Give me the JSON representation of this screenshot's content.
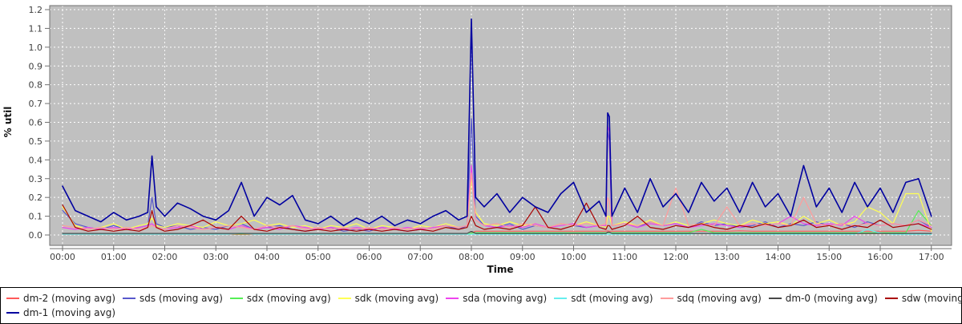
{
  "colors": {
    "page_bg": "#ffffff",
    "plot_bg": "#c0c0c0",
    "grid": "#ffffff",
    "frame": "#707070",
    "tick_text": "#404040",
    "legend_border": "#000000",
    "legend_text": "#222222"
  },
  "chart_data": {
    "type": "line",
    "title": "",
    "ylabel": "% util",
    "xlabel": "Time",
    "ylim": [
      0,
      1.2
    ],
    "grid": true,
    "legend_position": "bottom",
    "yticks": [
      "0.0",
      "0.1",
      "0.2",
      "0.3",
      "0.4",
      "0.5",
      "0.6",
      "0.7",
      "0.8",
      "0.9",
      "1.0",
      "1.1",
      "1.2"
    ],
    "xticks": [
      "00:00",
      "01:00",
      "02:00",
      "03:00",
      "04:00",
      "05:00",
      "06:00",
      "07:00",
      "08:00",
      "09:00",
      "10:00",
      "11:00",
      "12:00",
      "13:00",
      "14:00",
      "15:00",
      "16:00",
      "17:00"
    ],
    "x_minutes": [
      0,
      15,
      30,
      45,
      60,
      75,
      90,
      100,
      105,
      110,
      120,
      135,
      150,
      165,
      180,
      195,
      210,
      225,
      240,
      255,
      270,
      285,
      300,
      315,
      330,
      345,
      360,
      375,
      390,
      405,
      420,
      435,
      450,
      465,
      475,
      480,
      485,
      495,
      510,
      525,
      540,
      555,
      570,
      585,
      600,
      615,
      630,
      638,
      640,
      642,
      645,
      660,
      675,
      690,
      705,
      720,
      735,
      750,
      765,
      780,
      795,
      810,
      825,
      840,
      855,
      870,
      885,
      900,
      915,
      930,
      945,
      960,
      975,
      990,
      1005,
      1020
    ],
    "series": [
      {
        "name": "dm-2",
        "label": "dm-2 (moving avg)",
        "color": "#ff5a5a",
        "values": [
          0.003,
          0.003,
          0.003,
          0.003,
          0.003,
          0.003,
          0.003,
          0.003,
          0.003,
          0.003,
          0.003,
          0.003,
          0.003,
          0.003,
          0.003,
          0.003,
          0.003,
          0.003,
          0.003,
          0.003,
          0.003,
          0.003,
          0.003,
          0.003,
          0.003,
          0.003,
          0.003,
          0.003,
          0.003,
          0.003,
          0.003,
          0.003,
          0.003,
          0.003,
          0.003,
          0.01,
          0.02,
          0.02,
          0.02,
          0.02,
          0.02,
          0.02,
          0.02,
          0.02,
          0.02,
          0.02,
          0.02,
          0.02,
          0.022,
          0.02,
          0.02,
          0.02,
          0.02,
          0.02,
          0.02,
          0.02,
          0.02,
          0.02,
          0.02,
          0.02,
          0.022,
          0.02,
          0.02,
          0.02,
          0.02,
          0.02,
          0.02,
          0.02,
          0.02,
          0.02,
          0.02,
          0.02,
          0.02,
          0.02,
          0.025,
          0.02
        ]
      },
      {
        "name": "sds",
        "label": "sds (moving avg)",
        "color": "#5858cc",
        "values": [
          0.13,
          0.06,
          0.04,
          0.03,
          0.05,
          0.03,
          0.04,
          0.05,
          0.2,
          0.06,
          0.04,
          0.05,
          0.03,
          0.04,
          0.03,
          0.05,
          0.06,
          0.03,
          0.04,
          0.05,
          0.03,
          0.02,
          0.03,
          0.04,
          0.02,
          0.03,
          0.02,
          0.04,
          0.03,
          0.02,
          0.03,
          0.04,
          0.05,
          0.03,
          0.05,
          0.62,
          0.1,
          0.05,
          0.04,
          0.06,
          0.03,
          0.05,
          0.04,
          0.06,
          0.05,
          0.04,
          0.05,
          0.04,
          0.55,
          0.5,
          0.05,
          0.06,
          0.04,
          0.07,
          0.05,
          0.06,
          0.04,
          0.07,
          0.05,
          0.06,
          0.04,
          0.05,
          0.07,
          0.04,
          0.06,
          0.05,
          0.07,
          0.05,
          0.06,
          0.04,
          0.07,
          0.05,
          0.06,
          0.05,
          0.08,
          0.04
        ]
      },
      {
        "name": "sdx",
        "label": "sdx (moving avg)",
        "color": "#55ee55",
        "values": [
          0.005,
          0.005,
          0.005,
          0.005,
          0.005,
          0.005,
          0.005,
          0.005,
          0.005,
          0.005,
          0.005,
          0.005,
          0.005,
          0.005,
          0.005,
          0.005,
          0.005,
          0.005,
          0.005,
          0.005,
          0.005,
          0.005,
          0.005,
          0.005,
          0.005,
          0.005,
          0.005,
          0.005,
          0.005,
          0.005,
          0.005,
          0.005,
          0.005,
          0.005,
          0.005,
          0.01,
          0.012,
          0.012,
          0.012,
          0.012,
          0.012,
          0.012,
          0.012,
          0.012,
          0.012,
          0.012,
          0.012,
          0.012,
          0.012,
          0.012,
          0.012,
          0.012,
          0.012,
          0.012,
          0.012,
          0.012,
          0.012,
          0.03,
          0.012,
          0.012,
          0.012,
          0.012,
          0.012,
          0.012,
          0.012,
          0.012,
          0.012,
          0.012,
          0.012,
          0.012,
          0.012,
          0.012,
          0.012,
          0.012,
          0.13,
          0.05
        ]
      },
      {
        "name": "sdk",
        "label": "sdk (moving avg)",
        "color": "#ffff55",
        "values": [
          0.15,
          0.05,
          0.03,
          0.04,
          0.06,
          0.03,
          0.05,
          0.06,
          0.09,
          0.05,
          0.04,
          0.06,
          0.05,
          0.04,
          0.07,
          0.05,
          0.06,
          0.08,
          0.05,
          0.06,
          0.04,
          0.05,
          0.03,
          0.05,
          0.04,
          0.06,
          0.03,
          0.05,
          0.04,
          0.03,
          0.05,
          0.04,
          0.06,
          0.04,
          0.05,
          0.3,
          0.12,
          0.06,
          0.05,
          0.07,
          0.05,
          0.06,
          0.04,
          0.06,
          0.05,
          0.07,
          0.05,
          0.04,
          0.1,
          0.1,
          0.05,
          0.07,
          0.05,
          0.08,
          0.05,
          0.07,
          0.05,
          0.06,
          0.08,
          0.06,
          0.05,
          0.08,
          0.06,
          0.07,
          0.05,
          0.1,
          0.06,
          0.08,
          0.05,
          0.07,
          0.15,
          0.12,
          0.06,
          0.22,
          0.22,
          0.02
        ]
      },
      {
        "name": "sda",
        "label": "sda (moving avg)",
        "color": "#ee44ee",
        "values": [
          0.04,
          0.03,
          0.04,
          0.03,
          0.04,
          0.03,
          0.04,
          0.05,
          0.06,
          0.04,
          0.03,
          0.04,
          0.05,
          0.03,
          0.04,
          0.03,
          0.05,
          0.03,
          0.04,
          0.03,
          0.05,
          0.04,
          0.03,
          0.04,
          0.03,
          0.04,
          0.03,
          0.04,
          0.03,
          0.04,
          0.03,
          0.04,
          0.05,
          0.04,
          0.05,
          0.37,
          0.08,
          0.05,
          0.04,
          0.05,
          0.04,
          0.06,
          0.04,
          0.05,
          0.06,
          0.04,
          0.05,
          0.05,
          0.58,
          0.55,
          0.05,
          0.06,
          0.04,
          0.06,
          0.05,
          0.06,
          0.04,
          0.05,
          0.06,
          0.05,
          0.04,
          0.06,
          0.05,
          0.06,
          0.1,
          0.06,
          0.05,
          0.06,
          0.05,
          0.1,
          0.06,
          0.05,
          0.06,
          0.05,
          0.06,
          0.04
        ]
      },
      {
        "name": "sdt",
        "label": "sdt (moving avg)",
        "color": "#66eeee",
        "values": [
          0.004,
          0.004,
          0.004,
          0.004,
          0.004,
          0.004,
          0.004,
          0.004,
          0.004,
          0.004,
          0.004,
          0.004,
          0.004,
          0.004,
          0.004,
          0.004,
          0.01,
          0.004,
          0.004,
          0.004,
          0.004,
          0.004,
          0.004,
          0.004,
          0.004,
          0.004,
          0.004,
          0.004,
          0.004,
          0.004,
          0.004,
          0.004,
          0.004,
          0.004,
          0.004,
          0.004,
          0.004,
          0.004,
          0.004,
          0.004,
          0.004,
          0.004,
          0.004,
          0.004,
          0.008,
          0.004,
          0.004,
          0.004,
          0.004,
          0.004,
          0.004,
          0.004,
          0.004,
          0.004,
          0.004,
          0.004,
          0.004,
          0.01,
          0.004,
          0.004,
          0.004,
          0.004,
          0.004,
          0.004,
          0.004,
          0.004,
          0.004,
          0.004,
          0.004,
          0.004,
          0.03,
          0.01,
          0.004,
          0.004,
          0.004,
          0.004
        ]
      },
      {
        "name": "sdq",
        "label": "sdq (moving avg)",
        "color": "#ff9c9c",
        "values": [
          0.05,
          0.04,
          0.03,
          0.04,
          0.03,
          0.04,
          0.03,
          0.04,
          0.05,
          0.04,
          0.03,
          0.05,
          0.04,
          0.03,
          0.04,
          0.05,
          0.04,
          0.03,
          0.05,
          0.04,
          0.05,
          0.03,
          0.04,
          0.03,
          0.04,
          0.03,
          0.04,
          0.03,
          0.04,
          0.03,
          0.04,
          0.03,
          0.05,
          0.04,
          0.05,
          0.33,
          0.08,
          0.05,
          0.06,
          0.04,
          0.06,
          0.05,
          0.04,
          0.06,
          0.05,
          0.06,
          0.05,
          0.06,
          0.2,
          0.18,
          0.05,
          0.06,
          0.05,
          0.07,
          0.05,
          0.25,
          0.05,
          0.06,
          0.05,
          0.15,
          0.05,
          0.06,
          0.05,
          0.06,
          0.05,
          0.2,
          0.06,
          0.05,
          0.06,
          0.05,
          0.06,
          0.05,
          0.06,
          0.05,
          0.08,
          0.05
        ]
      },
      {
        "name": "dm-0",
        "label": "dm-0 (moving avg)",
        "color": "#484848",
        "values": [
          0.008,
          0.008,
          0.008,
          0.008,
          0.008,
          0.008,
          0.008,
          0.008,
          0.008,
          0.008,
          0.008,
          0.008,
          0.008,
          0.008,
          0.008,
          0.008,
          0.008,
          0.008,
          0.008,
          0.008,
          0.008,
          0.008,
          0.008,
          0.008,
          0.008,
          0.008,
          0.008,
          0.008,
          0.008,
          0.008,
          0.008,
          0.008,
          0.008,
          0.008,
          0.008,
          0.02,
          0.008,
          0.008,
          0.008,
          0.008,
          0.008,
          0.008,
          0.008,
          0.008,
          0.008,
          0.008,
          0.008,
          0.008,
          0.015,
          0.015,
          0.008,
          0.008,
          0.008,
          0.008,
          0.008,
          0.008,
          0.008,
          0.008,
          0.008,
          0.008,
          0.008,
          0.008,
          0.008,
          0.008,
          0.008,
          0.008,
          0.008,
          0.008,
          0.008,
          0.008,
          0.008,
          0.008,
          0.008,
          0.008,
          0.008,
          0.008
        ]
      },
      {
        "name": "sdw",
        "label": "sdw (moving avg)",
        "color": "#aa0000",
        "values": [
          0.16,
          0.04,
          0.02,
          0.03,
          0.02,
          0.03,
          0.02,
          0.04,
          0.13,
          0.04,
          0.02,
          0.03,
          0.05,
          0.08,
          0.04,
          0.03,
          0.1,
          0.03,
          0.02,
          0.04,
          0.03,
          0.02,
          0.03,
          0.02,
          0.03,
          0.02,
          0.03,
          0.02,
          0.03,
          0.02,
          0.03,
          0.02,
          0.04,
          0.03,
          0.04,
          0.1,
          0.05,
          0.03,
          0.04,
          0.03,
          0.05,
          0.15,
          0.04,
          0.03,
          0.05,
          0.17,
          0.04,
          0.03,
          0.05,
          0.05,
          0.03,
          0.05,
          0.1,
          0.04,
          0.03,
          0.05,
          0.04,
          0.06,
          0.04,
          0.03,
          0.05,
          0.04,
          0.06,
          0.04,
          0.05,
          0.08,
          0.04,
          0.05,
          0.03,
          0.05,
          0.04,
          0.08,
          0.04,
          0.05,
          0.06,
          0.03
        ]
      },
      {
        "name": "dm-1",
        "label": "dm-1 (moving avg)",
        "color": "#0000a0",
        "values": [
          0.26,
          0.13,
          0.1,
          0.07,
          0.12,
          0.08,
          0.1,
          0.12,
          0.42,
          0.15,
          0.1,
          0.17,
          0.14,
          0.1,
          0.08,
          0.13,
          0.28,
          0.1,
          0.2,
          0.16,
          0.21,
          0.08,
          0.06,
          0.1,
          0.05,
          0.09,
          0.06,
          0.1,
          0.05,
          0.08,
          0.06,
          0.1,
          0.13,
          0.08,
          0.1,
          1.15,
          0.2,
          0.15,
          0.22,
          0.12,
          0.2,
          0.15,
          0.12,
          0.22,
          0.28,
          0.12,
          0.18,
          0.1,
          0.65,
          0.63,
          0.1,
          0.25,
          0.12,
          0.3,
          0.15,
          0.22,
          0.12,
          0.28,
          0.18,
          0.25,
          0.12,
          0.28,
          0.15,
          0.22,
          0.1,
          0.37,
          0.15,
          0.25,
          0.12,
          0.28,
          0.15,
          0.25,
          0.12,
          0.28,
          0.3,
          0.1
        ]
      }
    ]
  }
}
